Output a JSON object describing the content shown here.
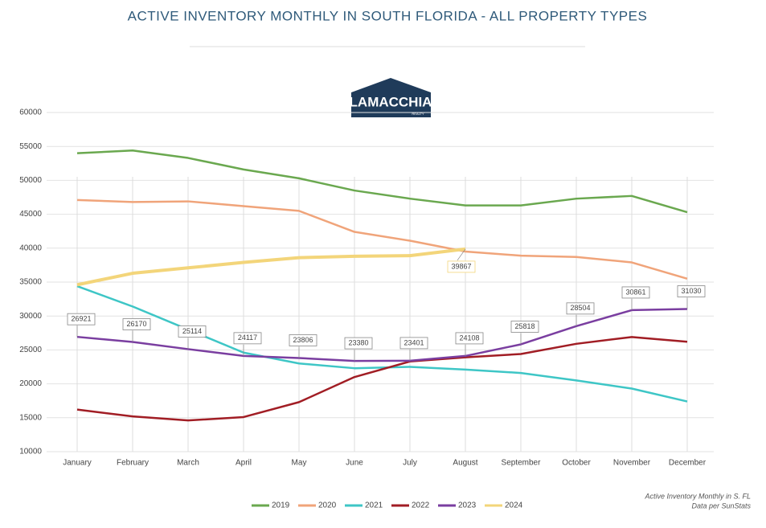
{
  "chart_data": {
    "type": "line",
    "title": "ACTIVE INVENTORY MONTHLY IN SOUTH FLORIDA - ALL PROPERTY TYPES",
    "logo": "LAMACCHIA",
    "logo_sub": "REALTY",
    "note": [
      "Active Inventory Monthly in S. FL",
      "Data per SunStats"
    ],
    "categories": [
      "January",
      "February",
      "March",
      "April",
      "May",
      "June",
      "July",
      "August",
      "September",
      "October",
      "November",
      "December"
    ],
    "ylim": [
      10000,
      60000
    ],
    "yticks": [
      10000,
      15000,
      20000,
      25000,
      30000,
      35000,
      40000,
      45000,
      50000,
      55000,
      60000
    ],
    "grid": true,
    "legend": "bottom",
    "series": [
      {
        "name": "2019",
        "color": "#6aa84f",
        "values": [
          54000,
          54400,
          53300,
          51600,
          50300,
          48500,
          47300,
          46300,
          46300,
          47300,
          47700,
          45300
        ]
      },
      {
        "name": "2020",
        "color": "#f0a47a",
        "values": [
          47100,
          46800,
          46900,
          46200,
          45500,
          42400,
          41100,
          39500,
          38900,
          38700,
          37900,
          35500
        ]
      },
      {
        "name": "2021",
        "color": "#3ec6c6",
        "values": [
          34400,
          31400,
          28000,
          24600,
          23000,
          22300,
          22500,
          22100,
          21600,
          20500,
          19300,
          17400
        ]
      },
      {
        "name": "2022",
        "color": "#a11d24",
        "values": [
          16200,
          15200,
          14600,
          15100,
          17300,
          21000,
          23300,
          23900,
          24400,
          25900,
          26900,
          26200
        ]
      },
      {
        "name": "2023",
        "color": "#7a3ea0",
        "values": [
          26921,
          26170,
          25114,
          24117,
          23806,
          23380,
          23401,
          24108,
          25818,
          28504,
          30861,
          31030
        ],
        "value_labels": [
          "26921",
          "26170",
          "25114",
          "24117",
          "23806",
          "23380",
          "23401",
          "24108",
          "25818",
          "28504",
          "30861",
          "31030"
        ]
      },
      {
        "name": "2024",
        "color": "#f3d57a",
        "values": [
          34600,
          36300,
          37100,
          37900,
          38600,
          38800,
          38900,
          39867,
          null,
          null,
          null,
          null
        ],
        "value_labels": [
          null,
          null,
          null,
          null,
          null,
          null,
          null,
          "39867",
          null,
          null,
          null,
          null
        ]
      }
    ]
  }
}
